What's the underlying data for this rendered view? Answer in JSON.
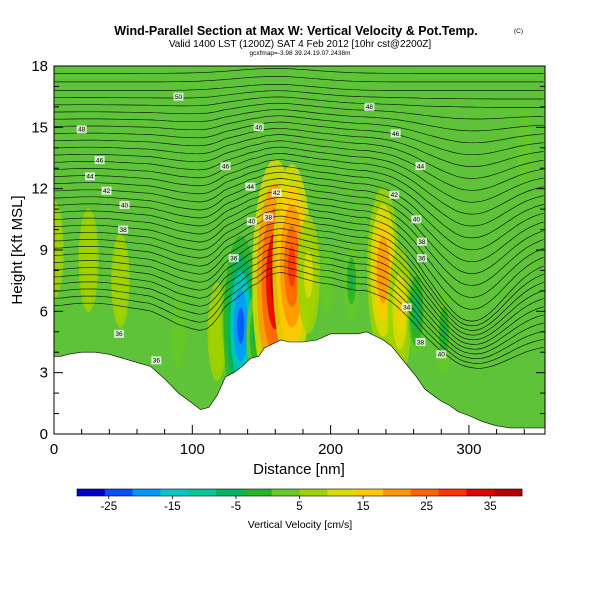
{
  "chart_data": {
    "type": "heatmap",
    "title": "Wind-Parallel Section at Max W: Vertical Velocity & Pot.Temp.",
    "copyright": "(C)",
    "subtitle": "Valid 1400 LST (1200Z) SAT 4 Feb 2012 [10hr cst@2200Z]",
    "subtitle2": "gcxfmap=-3.98 39.24.19.07.2438m",
    "xlabel": "Distance [nm]",
    "ylabel": "Height [Kft MSL]",
    "xlim": [
      0,
      355
    ],
    "ylim": [
      0,
      18
    ],
    "x_ticks": [
      0,
      100,
      200,
      300
    ],
    "y_ticks": [
      0,
      3,
      6,
      9,
      12,
      15,
      18
    ],
    "colorbar": {
      "label": "Vertical Velocity [cm/s]",
      "ticks": [
        -25,
        -15,
        -5,
        5,
        15,
        25,
        35
      ],
      "range": [
        -30,
        40
      ],
      "colors": [
        "#0000c8",
        "#0050ff",
        "#0096ff",
        "#00c8c8",
        "#00c896",
        "#00b464",
        "#28b428",
        "#64c828",
        "#a0d200",
        "#dcdc00",
        "#ffc800",
        "#ff9600",
        "#ff6400",
        "#ff3200",
        "#e00000",
        "#b40000"
      ]
    },
    "terrain": [
      [
        0,
        3.8
      ],
      [
        5,
        3.8
      ],
      [
        10,
        3.9
      ],
      [
        20,
        4
      ],
      [
        30,
        4
      ],
      [
        40,
        3.9
      ],
      [
        50,
        3.7
      ],
      [
        60,
        3.5
      ],
      [
        70,
        3.3
      ],
      [
        80,
        2.7
      ],
      [
        90,
        2
      ],
      [
        100,
        1.5
      ],
      [
        106,
        1.2
      ],
      [
        112,
        1.3
      ],
      [
        118,
        1.9
      ],
      [
        124,
        2.8
      ],
      [
        130,
        3
      ],
      [
        136,
        3.3
      ],
      [
        142,
        3.7
      ],
      [
        148,
        3.8
      ],
      [
        152,
        4.2
      ],
      [
        158,
        4.4
      ],
      [
        164,
        4.6
      ],
      [
        170,
        4.5
      ],
      [
        180,
        4.5
      ],
      [
        190,
        4.6
      ],
      [
        200,
        4.9
      ],
      [
        210,
        4.9
      ],
      [
        220,
        4.9
      ],
      [
        226,
        5
      ],
      [
        232,
        4.8
      ],
      [
        238,
        4.6
      ],
      [
        244,
        4.3
      ],
      [
        250,
        3.8
      ],
      [
        256,
        3.3
      ],
      [
        262,
        2.8
      ],
      [
        268,
        2.2
      ],
      [
        274,
        1.9
      ],
      [
        280,
        1.6
      ],
      [
        286,
        1.4
      ],
      [
        292,
        1.1
      ],
      [
        300,
        0.9
      ],
      [
        310,
        0.6
      ],
      [
        320,
        0.4
      ],
      [
        330,
        0.3
      ],
      [
        340,
        0.3
      ],
      [
        355,
        0.3
      ]
    ],
    "w_cells": [
      {
        "x": 0,
        "z": 9,
        "w": 8
      },
      {
        "x": 25,
        "z": 8.5,
        "w": 9
      },
      {
        "x": 48,
        "z": 7.5,
        "w": 7
      },
      {
        "x": 90,
        "z": 5,
        "w": 3
      },
      {
        "x": 118,
        "z": 5,
        "w": 8
      },
      {
        "x": 128,
        "z": 5.8,
        "w": -8
      },
      {
        "x": 135,
        "z": 5.3,
        "w": -25
      },
      {
        "x": 145,
        "z": 4.8,
        "w": -5
      },
      {
        "x": 160,
        "z": 7.5,
        "w": 38
      },
      {
        "x": 172,
        "z": 8.2,
        "w": 30
      },
      {
        "x": 184,
        "z": 7.8,
        "w": 12
      },
      {
        "x": 197,
        "z": 7.5,
        "w": 2
      },
      {
        "x": 215,
        "z": 7.5,
        "w": -4
      },
      {
        "x": 238,
        "z": 8,
        "w": 22
      },
      {
        "x": 250,
        "z": 6,
        "w": 14
      },
      {
        "x": 262,
        "z": 6,
        "w": -6
      },
      {
        "x": 282,
        "z": 5,
        "w": -5
      },
      {
        "x": 340,
        "z": 14,
        "w": 4
      }
    ],
    "contour_labels": [
      {
        "x": 90,
        "z": 16.5,
        "text": "50"
      },
      {
        "x": 228,
        "z": 16,
        "text": "48"
      },
      {
        "x": 20,
        "z": 14.9,
        "text": "48"
      },
      {
        "x": 148,
        "z": 15,
        "text": "46"
      },
      {
        "x": 247,
        "z": 14.7,
        "text": "46"
      },
      {
        "x": 33,
        "z": 13.4,
        "text": "46"
      },
      {
        "x": 124,
        "z": 13.1,
        "text": "46"
      },
      {
        "x": 265,
        "z": 13.1,
        "text": "44"
      },
      {
        "x": 26,
        "z": 12.6,
        "text": "44"
      },
      {
        "x": 142,
        "z": 12.1,
        "text": "44"
      },
      {
        "x": 38,
        "z": 11.9,
        "text": "42"
      },
      {
        "x": 161,
        "z": 11.8,
        "text": "42"
      },
      {
        "x": 246,
        "z": 11.7,
        "text": "42"
      },
      {
        "x": 51,
        "z": 11.2,
        "text": "40"
      },
      {
        "x": 143,
        "z": 10.4,
        "text": "40"
      },
      {
        "x": 155,
        "z": 10.6,
        "text": "38"
      },
      {
        "x": 262,
        "z": 10.5,
        "text": "40"
      },
      {
        "x": 50,
        "z": 10,
        "text": "38"
      },
      {
        "x": 266,
        "z": 9.4,
        "text": "38"
      },
      {
        "x": 130,
        "z": 8.6,
        "text": "36"
      },
      {
        "x": 266,
        "z": 8.6,
        "text": "36"
      },
      {
        "x": 255,
        "z": 6.2,
        "text": "34"
      },
      {
        "x": 47,
        "z": 4.9,
        "text": "36"
      },
      {
        "x": 265,
        "z": 4.5,
        "text": "38"
      },
      {
        "x": 74,
        "z": 3.6,
        "text": "36"
      },
      {
        "x": 280,
        "z": 3.9,
        "text": "40"
      }
    ]
  }
}
